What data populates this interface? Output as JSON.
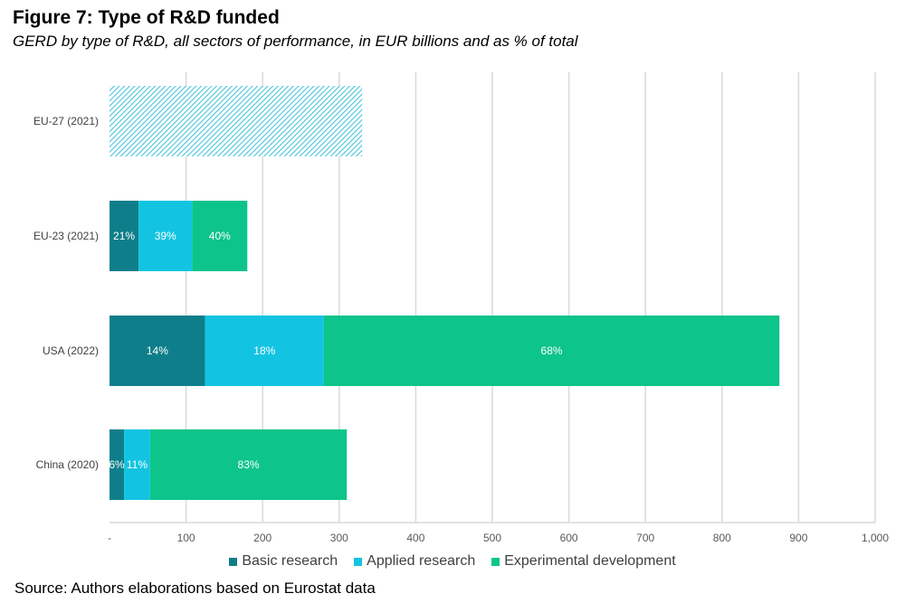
{
  "title": "Figure 7: Type of R&D funded",
  "subtitle": "GERD by type of R&D, all sectors of performance, in EUR billions and as % of total",
  "source": "Source: Authors elaborations based on Eurostat data",
  "colors": {
    "basic": "#0e7f8a",
    "applied": "#12c4e2",
    "experimental": "#0dc48a",
    "eu27": "#47c4dc",
    "gridline": "#d9d9d9"
  },
  "chart_data": {
    "type": "bar",
    "orientation": "horizontal",
    "stacked": true,
    "categories": [
      "EU-27 (2021)",
      "EU-23 (2021)",
      "USA (2022)",
      "China (2020)"
    ],
    "xlim": [
      0,
      1000
    ],
    "xticks": [
      "-",
      "100",
      "200",
      "300",
      "400",
      "500",
      "600",
      "700",
      "800",
      "900",
      "1,000"
    ],
    "grid": true,
    "legend_position": "bottom",
    "series": [
      {
        "name": "Basic research",
        "key": "basic",
        "values": [
          null,
          38,
          125,
          19
        ],
        "labels": [
          "",
          "21%",
          "14%",
          "6%"
        ]
      },
      {
        "name": "Applied research",
        "key": "applied",
        "values": [
          null,
          70,
          155,
          34
        ],
        "labels": [
          "",
          "39%",
          "18%",
          "11%"
        ]
      },
      {
        "name": "Experimental development",
        "key": "experimental",
        "values": [
          null,
          72,
          595,
          257
        ],
        "labels": [
          "",
          "40%",
          "68%",
          "83%"
        ]
      }
    ],
    "total_only": {
      "category": "EU-27 (2021)",
      "value": 330,
      "pattern": "hatched"
    }
  }
}
